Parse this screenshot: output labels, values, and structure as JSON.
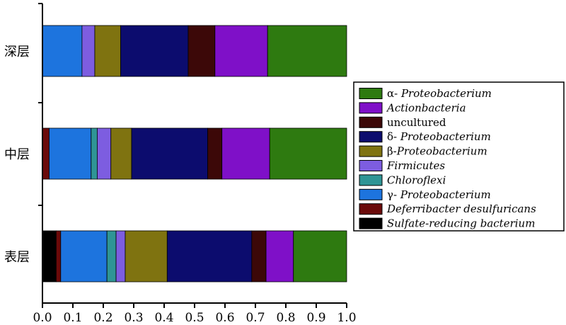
{
  "chart_data": {
    "type": "bar",
    "orientation": "horizontal",
    "stacked": true,
    "categories": [
      "深层",
      "中层",
      "表层"
    ],
    "xlim": [
      0,
      1.0
    ],
    "xticks": [
      "0.0",
      "0.1",
      "0.2",
      "0.3",
      "0.4",
      "0.5",
      "0.6",
      "0.7",
      "0.8",
      "0.9",
      "1.0"
    ],
    "grid": false,
    "legend_position": "right",
    "series": [
      {
        "name": "Sulfate-reducing bacterium",
        "prefix": "",
        "italic": "Sulfate-reducing bacterium",
        "color": "#000000",
        "values": [
          0.0,
          0.0,
          0.045
        ]
      },
      {
        "name": "Deferribacter desulfuricans",
        "prefix": "",
        "italic": "Deferribacter desulfuricans",
        "color": "#6b0a0a",
        "values": [
          0.0,
          0.022,
          0.015
        ]
      },
      {
        "name": "γ- Proteobacterium",
        "prefix": "γ- ",
        "italic": "Proteobacterium",
        "color": "#1d74de",
        "values": [
          0.13,
          0.138,
          0.152
        ]
      },
      {
        "name": "Chloroflexi",
        "prefix": "",
        "italic": "Chloroflexi",
        "color": "#2f9595",
        "values": [
          0.0,
          0.02,
          0.03
        ]
      },
      {
        "name": "Firmicutes",
        "prefix": "",
        "italic": "Firmicutes",
        "color": "#7d5de0",
        "values": [
          0.042,
          0.045,
          0.03
        ]
      },
      {
        "name": "β-Proteobacterium",
        "prefix": "β-",
        "italic": "Proteobacterium",
        "color": "#7f7310",
        "values": [
          0.085,
          0.068,
          0.138
        ]
      },
      {
        "name": "δ- Proteobacterium",
        "prefix": "δ- ",
        "italic": "Proteobacterium",
        "color": "#0c0c6e",
        "values": [
          0.222,
          0.25,
          0.278
        ]
      },
      {
        "name": "uncultured",
        "prefix": "uncultured",
        "italic": "",
        "color": "#3c0808",
        "values": [
          0.088,
          0.047,
          0.047
        ]
      },
      {
        "name": "Actionbacteria",
        "prefix": "",
        "italic": "Actionbacteria",
        "color": "#7f10c8",
        "values": [
          0.173,
          0.157,
          0.09
        ]
      },
      {
        "name": "α- Proteobacterium",
        "prefix": "α- ",
        "italic": "Proteobacterium",
        "color": "#2e7a10",
        "values": [
          0.26,
          0.253,
          0.175
        ]
      }
    ],
    "legend_order": [
      "α- Proteobacterium",
      "Actionbacteria",
      "uncultured",
      "δ- Proteobacterium",
      "β-Proteobacterium",
      "Firmicutes",
      "Chloroflexi",
      "γ- Proteobacterium",
      "Deferribacter desulfuricans",
      "Sulfate-reducing bacterium"
    ]
  }
}
